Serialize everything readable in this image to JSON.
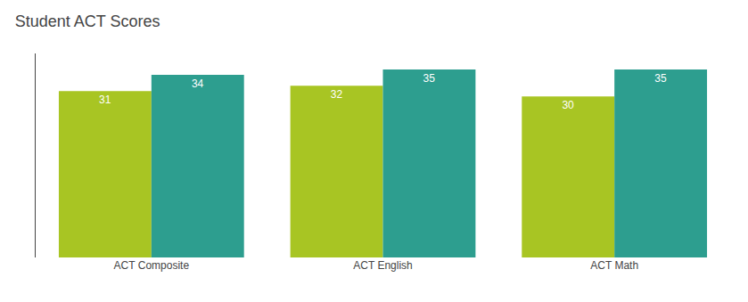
{
  "chart_data": {
    "type": "bar",
    "title": "Student ACT Scores",
    "categories": [
      "ACT Composite",
      "ACT English",
      "ACT Math"
    ],
    "series": [
      {
        "color": "#A8C523",
        "values": [
          31,
          32,
          30
        ]
      },
      {
        "color": "#2D9E8F",
        "values": [
          34,
          35,
          35
        ]
      }
    ],
    "ylim": [
      0,
      38
    ],
    "yticks": [],
    "data_labels": true,
    "tick_labels": "x",
    "grid": false
  }
}
